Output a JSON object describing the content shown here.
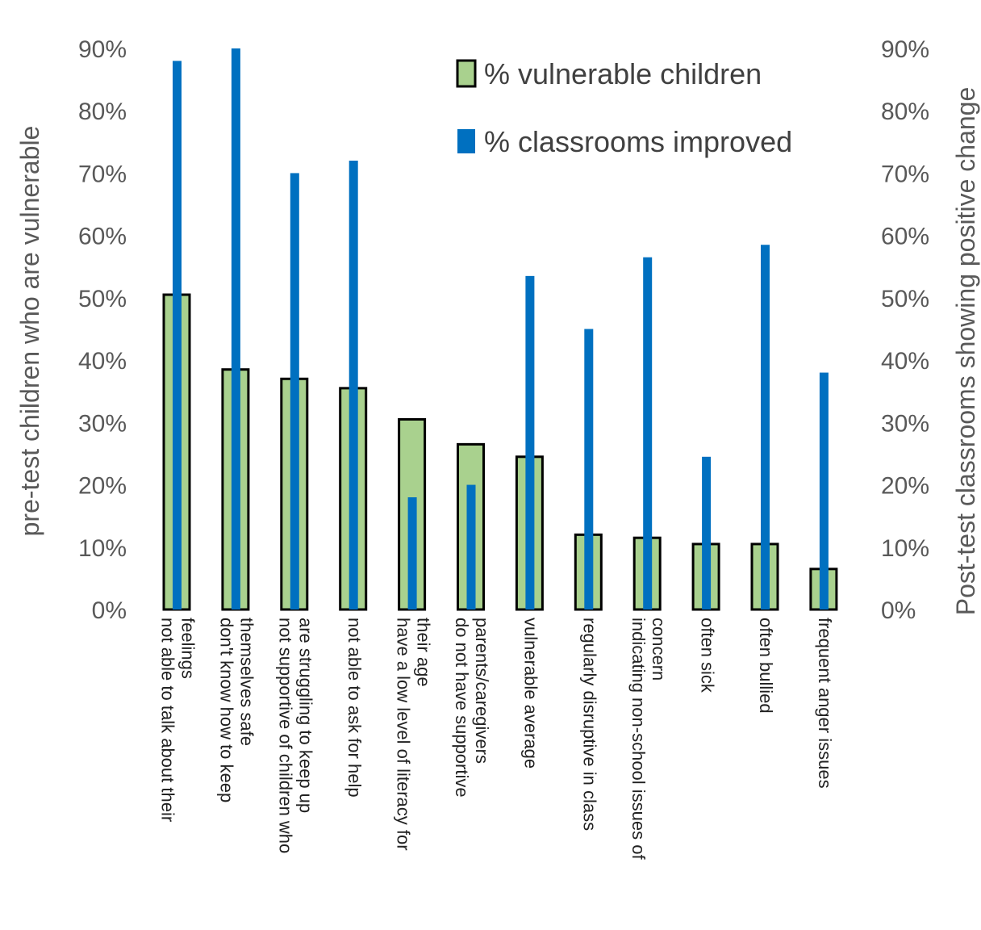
{
  "chart_data": {
    "type": "bar",
    "ylabel_left": "pre-test children who are vulnerable",
    "ylabel_right": "Post-test classrooms showing positive change",
    "ylim_left": [
      0,
      90
    ],
    "ylim_right": [
      0,
      90
    ],
    "yticks": [
      "0%",
      "10%",
      "20%",
      "30%",
      "40%",
      "50%",
      "60%",
      "70%",
      "80%",
      "90%"
    ],
    "grid": false,
    "legend_position": "top-right",
    "categories": [
      [
        "not able to talk about their",
        "feelings"
      ],
      [
        "don't know how to keep",
        "themselves safe"
      ],
      [
        "not supportive of children who",
        "are struggling to keep up"
      ],
      [
        "not able to ask for help"
      ],
      [
        "have a low level of literacy for",
        "their age"
      ],
      [
        "do not have supportive",
        "parents/caregivers"
      ],
      [
        "vulnerable average"
      ],
      [
        "regularly disruptive in class"
      ],
      [
        "indicating non-school issues of",
        "concern"
      ],
      [
        "often sick"
      ],
      [
        "often bullied"
      ],
      [
        "frequent anger issues"
      ]
    ],
    "series": [
      {
        "name": "% vulnerable children",
        "axis": "left",
        "color": "#a9d18e",
        "border": "#000000",
        "values": [
          50.5,
          38.5,
          37,
          35.5,
          30.5,
          26.5,
          24.5,
          12,
          11.5,
          10.5,
          10.5,
          6.5
        ]
      },
      {
        "name": "% classrooms improved",
        "axis": "right",
        "color": "#0070c0",
        "values": [
          88,
          90,
          70,
          72,
          18,
          20,
          53.5,
          45,
          56.5,
          24.5,
          58.5,
          38
        ]
      }
    ]
  }
}
